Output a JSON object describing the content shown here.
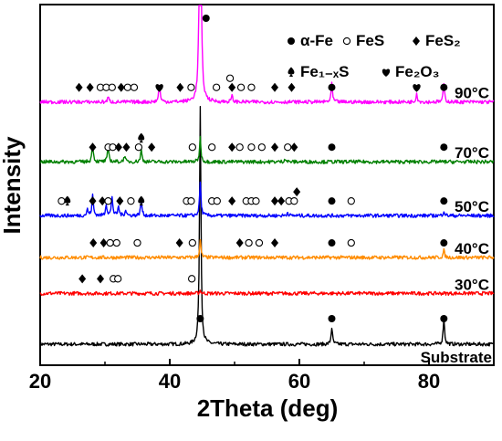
{
  "chart_data": {
    "type": "line",
    "subtype": "stacked-xrd-patterns",
    "title": "",
    "xlabel": "2Theta (deg)",
    "ylabel": "Intensity",
    "xlim": [
      20,
      90
    ],
    "x_ticks": [
      20,
      40,
      60,
      80
    ],
    "y_ticks": [],
    "grid": false,
    "legend_position": "top-right",
    "legend": [
      {
        "marker": "solid-circle",
        "label": "α-Fe"
      },
      {
        "marker": "open-circle",
        "label": "FeS"
      },
      {
        "marker": "diamond",
        "label": "FeS₂"
      },
      {
        "marker": "spade",
        "label": "Fe₁₋ₓS"
      },
      {
        "marker": "heart",
        "label": "Fe₂O₃"
      }
    ],
    "series": [
      {
        "name": "Substrate",
        "color": "#000000",
        "baseline": 0.0,
        "peaks": [
          {
            "x": 44.7,
            "h": 0.4
          },
          {
            "x": 65.0,
            "h": 0.028
          },
          {
            "x": 82.3,
            "h": 0.044
          }
        ],
        "markers": [
          {
            "x": 44.7,
            "type": "solid-circle"
          },
          {
            "x": 65.0,
            "type": "solid-circle"
          },
          {
            "x": 82.3,
            "type": "solid-circle"
          }
        ]
      },
      {
        "name": "30°C",
        "color": "#ff0000",
        "baseline": 0.085,
        "peaks": [
          {
            "x": 44.7,
            "h": 0.005
          }
        ],
        "markers": [
          {
            "x": 26.5,
            "type": "diamond"
          },
          {
            "x": 29.3,
            "type": "diamond"
          },
          {
            "x": 31.3,
            "type": "open-circle"
          },
          {
            "x": 32.0,
            "type": "open-circle"
          },
          {
            "x": 43.4,
            "type": "open-circle"
          }
        ]
      },
      {
        "name": "40°C",
        "color": "#ff8c00",
        "baseline": 0.145,
        "peaks": [
          {
            "x": 44.7,
            "h": 0.028
          },
          {
            "x": 82.3,
            "h": 0.012
          }
        ],
        "markers": [
          {
            "x": 28.2,
            "type": "diamond"
          },
          {
            "x": 29.8,
            "type": "diamond"
          },
          {
            "x": 30.8,
            "type": "open-circle"
          },
          {
            "x": 31.8,
            "type": "open-circle"
          },
          {
            "x": 35.0,
            "type": "open-circle"
          },
          {
            "x": 41.5,
            "type": "diamond"
          },
          {
            "x": 43.5,
            "type": "open-circle"
          },
          {
            "x": 50.8,
            "type": "diamond"
          },
          {
            "x": 52.2,
            "type": "open-circle"
          },
          {
            "x": 53.8,
            "type": "open-circle"
          },
          {
            "x": 56.2,
            "type": "diamond"
          },
          {
            "x": 65.0,
            "type": "solid-circle"
          },
          {
            "x": 68.0,
            "type": "open-circle"
          },
          {
            "x": 82.3,
            "type": "solid-circle"
          }
        ]
      },
      {
        "name": "50°C",
        "color": "#0000ff",
        "baseline": 0.215,
        "peaks": [
          {
            "x": 27.3,
            "h": 0.01
          },
          {
            "x": 28.1,
            "h": 0.035
          },
          {
            "x": 30.2,
            "h": 0.02
          },
          {
            "x": 31.1,
            "h": 0.032
          },
          {
            "x": 32.1,
            "h": 0.015
          },
          {
            "x": 33.2,
            "h": 0.01
          },
          {
            "x": 35.6,
            "h": 0.025
          },
          {
            "x": 44.7,
            "h": 0.055
          },
          {
            "x": 58.2,
            "h": 0.006
          },
          {
            "x": 82.3,
            "h": 0.008
          }
        ],
        "markers": [
          {
            "x": 23.3,
            "type": "open-circle"
          },
          {
            "x": 24.2,
            "type": "spade"
          },
          {
            "x": 28.1,
            "type": "diamond"
          },
          {
            "x": 29.6,
            "type": "diamond"
          },
          {
            "x": 30.5,
            "type": "open-circle"
          },
          {
            "x": 32.3,
            "type": "diamond"
          },
          {
            "x": 34.0,
            "type": "open-circle"
          },
          {
            "x": 35.6,
            "type": "spade"
          },
          {
            "x": 42.6,
            "type": "open-circle"
          },
          {
            "x": 43.3,
            "type": "open-circle"
          },
          {
            "x": 46.5,
            "type": "open-circle"
          },
          {
            "x": 47.3,
            "type": "open-circle"
          },
          {
            "x": 49.6,
            "type": "diamond"
          },
          {
            "x": 51.8,
            "type": "open-circle"
          },
          {
            "x": 52.6,
            "type": "open-circle"
          },
          {
            "x": 53.3,
            "type": "open-circle"
          },
          {
            "x": 56.2,
            "type": "diamond"
          },
          {
            "x": 57.2,
            "type": "diamond"
          },
          {
            "x": 58.4,
            "type": "open-circle"
          },
          {
            "x": 59.2,
            "type": "open-circle"
          },
          {
            "x": 59.6,
            "type": "diamond"
          },
          {
            "x": 65.0,
            "type": "solid-circle"
          },
          {
            "x": 68.0,
            "type": "open-circle"
          },
          {
            "x": 82.3,
            "type": "solid-circle"
          }
        ]
      },
      {
        "name": "70°C",
        "color": "#008000",
        "baseline": 0.305,
        "peaks": [
          {
            "x": 28.1,
            "h": 0.03
          },
          {
            "x": 30.5,
            "h": 0.025
          },
          {
            "x": 33.0,
            "h": 0.01
          },
          {
            "x": 35.6,
            "h": 0.02
          },
          {
            "x": 44.7,
            "h": 0.04
          },
          {
            "x": 57.8,
            "h": 0.006
          }
        ],
        "markers": [
          {
            "x": 28.1,
            "type": "diamond"
          },
          {
            "x": 30.5,
            "type": "open-circle"
          },
          {
            "x": 31.2,
            "type": "open-circle"
          },
          {
            "x": 32.1,
            "type": "diamond"
          },
          {
            "x": 33.3,
            "type": "diamond"
          },
          {
            "x": 35.2,
            "type": "open-circle"
          },
          {
            "x": 35.6,
            "type": "spade"
          },
          {
            "x": 37.2,
            "type": "diamond"
          },
          {
            "x": 43.5,
            "type": "open-circle"
          },
          {
            "x": 46.5,
            "type": "open-circle"
          },
          {
            "x": 49.6,
            "type": "diamond"
          },
          {
            "x": 50.8,
            "type": "open-circle"
          },
          {
            "x": 52.6,
            "type": "open-circle"
          },
          {
            "x": 54.2,
            "type": "open-circle"
          },
          {
            "x": 56.2,
            "type": "diamond"
          },
          {
            "x": 58.2,
            "type": "open-circle"
          },
          {
            "x": 59.2,
            "type": "diamond"
          },
          {
            "x": 65.0,
            "type": "solid-circle"
          },
          {
            "x": 82.3,
            "type": "solid-circle"
          }
        ]
      },
      {
        "name": "90°C",
        "color": "#ff00ff",
        "baseline": 0.405,
        "peaks": [
          {
            "x": 30.5,
            "h": 0.008
          },
          {
            "x": 38.4,
            "h": 0.03
          },
          {
            "x": 44.7,
            "h": 0.6
          },
          {
            "x": 49.6,
            "h": 0.01
          },
          {
            "x": 65.0,
            "h": 0.03
          },
          {
            "x": 78.1,
            "h": 0.015
          },
          {
            "x": 82.3,
            "h": 0.03
          }
        ],
        "markers": [
          {
            "x": 26.0,
            "type": "diamond"
          },
          {
            "x": 27.7,
            "type": "diamond"
          },
          {
            "x": 29.3,
            "type": "open-circle"
          },
          {
            "x": 30.2,
            "type": "open-circle"
          },
          {
            "x": 31.1,
            "type": "open-circle"
          },
          {
            "x": 32.5,
            "type": "diamond"
          },
          {
            "x": 33.5,
            "type": "open-circle"
          },
          {
            "x": 34.5,
            "type": "open-circle"
          },
          {
            "x": 38.4,
            "type": "heart"
          },
          {
            "x": 41.6,
            "type": "diamond"
          },
          {
            "x": 43.3,
            "type": "open-circle"
          },
          {
            "x": 45.6,
            "type": "solid-circle"
          },
          {
            "x": 47.2,
            "type": "open-circle"
          },
          {
            "x": 49.6,
            "type": "diamond"
          },
          {
            "x": 49.3,
            "type": "open-circle"
          },
          {
            "x": 51.0,
            "type": "open-circle"
          },
          {
            "x": 52.6,
            "type": "open-circle"
          },
          {
            "x": 56.2,
            "type": "diamond"
          },
          {
            "x": 58.8,
            "type": "diamond"
          },
          {
            "x": 65.0,
            "type": "solid-circle"
          },
          {
            "x": 78.1,
            "type": "heart"
          },
          {
            "x": 82.3,
            "type": "solid-circle"
          }
        ]
      }
    ],
    "trace_labels": [
      {
        "series": "90°C",
        "text": "90°C"
      },
      {
        "series": "70°C",
        "text": "70°C"
      },
      {
        "series": "50°C",
        "text": "50°C"
      },
      {
        "series": "40°C",
        "text": "40°C"
      },
      {
        "series": "30°C",
        "text": "30°C"
      },
      {
        "series": "Substrate",
        "text": "Substrate"
      }
    ]
  }
}
